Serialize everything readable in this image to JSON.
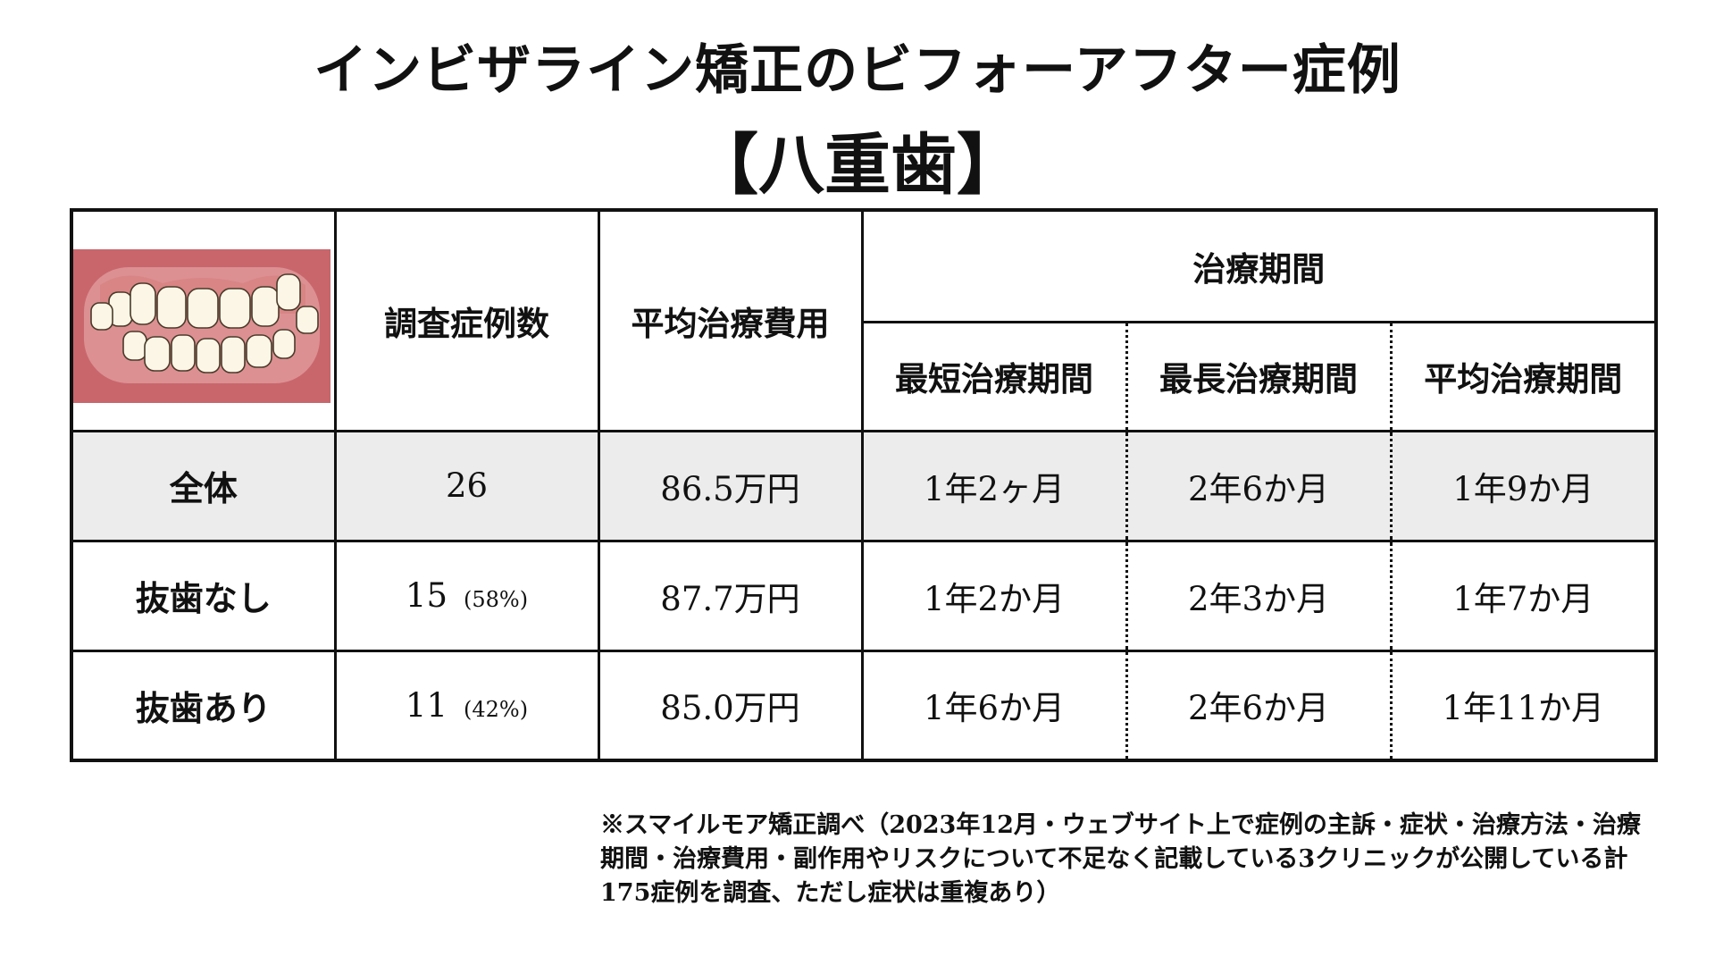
{
  "title": "インビザライン矯正のビフォーアフター症例",
  "subtitle": "【八重歯】",
  "header": {
    "cases": "調査症例数",
    "avg_cost": "平均治療費用",
    "period": "治療期間",
    "period_min": "最短治療期間",
    "period_max": "最長治療期間",
    "period_avg": "平均治療期間"
  },
  "rows": [
    {
      "label": "全体",
      "cases": "26",
      "pct": "",
      "cost": "86.5万円",
      "min": "1年2ヶ月",
      "max": "2年6か月",
      "avg": "1年9か月"
    },
    {
      "label": "抜歯なし",
      "cases": "15",
      "pct": "(58%)",
      "cost": "87.7万円",
      "min": "1年2か月",
      "max": "2年3か月",
      "avg": "1年7か月"
    },
    {
      "label": "抜歯あり",
      "cases": "11",
      "pct": "(42%)",
      "cost": "85.0万円",
      "min": "1年6か月",
      "max": "2年6か月",
      "avg": "1年11か月"
    }
  ],
  "footnote": "※スマイルモア矯正調べ（2023年12月・ウェブサイト上で症例の主訴・症状・治療方法・治療期間・治療費用・副作用やリスクについて不足なく記載している3クリニックが公開している計175症例を調査、ただし症状は重複あり）",
  "colors": {
    "gum": "#c9666c",
    "gum_light": "#e0a0a0",
    "tooth": "#fbf6e6",
    "row_shade": "#ececec"
  }
}
